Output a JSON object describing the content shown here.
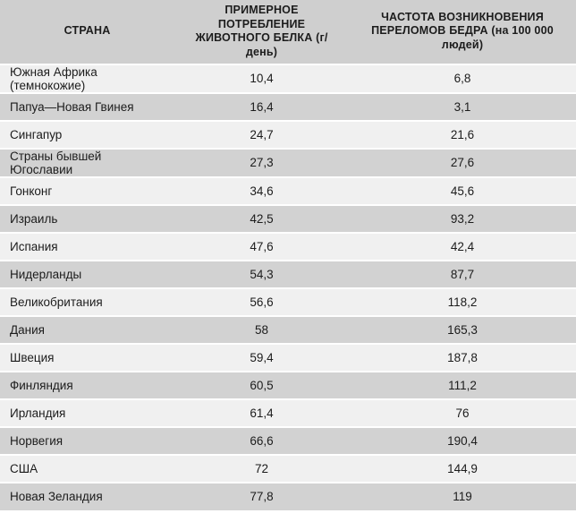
{
  "colors": {
    "header-bg": "#cfcfcf",
    "row-light": "#f0f0f0",
    "row-dark": "#d2d2d2",
    "separator": "#ffffff",
    "text": "#1c1c1c"
  },
  "table": {
    "columns": [
      {
        "label": "СТРАНА"
      },
      {
        "label": "ПРИМЕРНОЕ ПОТРЕБЛЕНИЕ ЖИВОТНОГО БЕЛКА (г/день)"
      },
      {
        "label": "ЧАСТОТА ВОЗНИКНОВЕНИЯ ПЕРЕЛОМОВ БЕДРА (на 100 000 людей)"
      }
    ],
    "rows": [
      [
        "Южная Африка (темнокожие)",
        "10,4",
        "6,8"
      ],
      [
        "Папуа—Новая Гвинея",
        "16,4",
        "3,1"
      ],
      [
        "Сингапур",
        "24,7",
        "21,6"
      ],
      [
        "Страны бывшей Югославии",
        "27,3",
        "27,6"
      ],
      [
        "Гонконг",
        "34,6",
        "45,6"
      ],
      [
        "Израиль",
        "42,5",
        "93,2"
      ],
      [
        "Испания",
        "47,6",
        "42,4"
      ],
      [
        "Нидерланды",
        "54,3",
        "87,7"
      ],
      [
        "Великобритания",
        "56,6",
        "118,2"
      ],
      [
        "Дания",
        "58",
        "165,3"
      ],
      [
        "Швеция",
        "59,4",
        "187,8"
      ],
      [
        "Финляндия",
        "60,5",
        "111,2"
      ],
      [
        "Ирландия",
        "61,4",
        "76"
      ],
      [
        "Норвегия",
        "66,6",
        "190,4"
      ],
      [
        "США",
        "72",
        "144,9"
      ],
      [
        "Новая Зеландия",
        "77,8",
        "119"
      ]
    ]
  }
}
